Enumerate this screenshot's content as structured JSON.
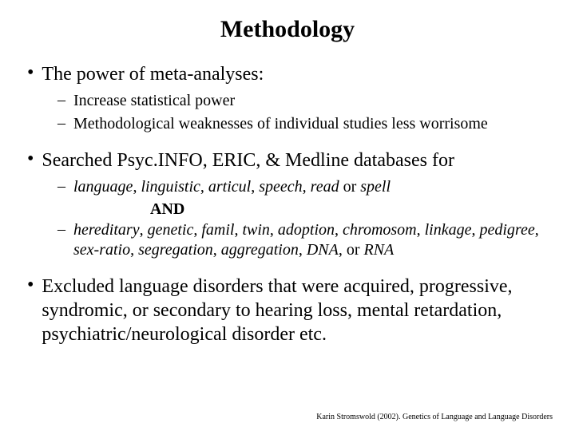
{
  "title": {
    "text": "Methodology",
    "fontsize": 30
  },
  "l1_fontsize": 24,
  "l2_fontsize": 20,
  "and_fontsize": 20,
  "citation_fontsize": 10,
  "bullet1": {
    "text": "The power of meta-analyses:",
    "subs": [
      "Increase statistical power",
      "Methodological weaknesses of individual studies less worrisome"
    ]
  },
  "bullet2": {
    "text": "Searched Psyc.INFO, ERIC, & Medline databases for",
    "sub1_terms": [
      "language",
      "linguistic",
      "articul",
      "speech",
      "read"
    ],
    "sub1_last": "spell",
    "sub1_or": " or ",
    "and": "AND",
    "sub2_terms": [
      "hereditary",
      "genetic",
      "famil",
      "twin",
      "adoption",
      "chromosom",
      "linkage",
      "pedigree",
      "sex-ratio",
      "segregation",
      "aggregation",
      "DNA"
    ],
    "sub2_last": "RNA",
    "sub2_or": ", or "
  },
  "bullet3": {
    "text": "Excluded language disorders that were acquired, progressive, syndromic, or secondary to hearing loss, mental retardation, psychiatric/neurological disorder etc."
  },
  "citation": "Karin Stromswold (2002). Genetics of Language and Language Disorders"
}
